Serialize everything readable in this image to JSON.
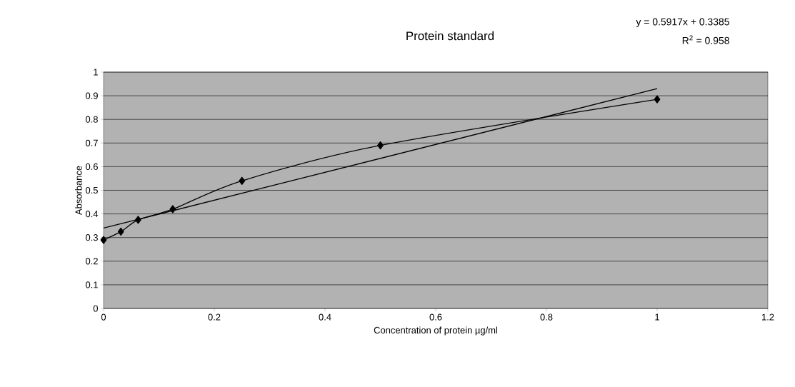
{
  "chart_data": {
    "type": "line",
    "title": "Protein standard",
    "xlabel": "Concentration of protein µg/ml",
    "ylabel": "Absorbance",
    "annotations": [
      "y = 0.5917x + 0.3385",
      "R$^{2}$ = 0.958"
    ],
    "series": [
      {
        "color": "#000000",
        "marker": "diamond",
        "x": [
          0,
          0.03125,
          0.0625,
          0.125,
          0.25,
          0.5,
          1
        ],
        "values": [
          0.29,
          0.325,
          0.375,
          0.42,
          0.54,
          0.69,
          0.885
        ]
      },
      {
        "color": "#000000",
        "marker": "none",
        "x": [
          0,
          1
        ],
        "values": [
          0.34,
          0.93
        ]
      }
    ],
    "xlim": [
      0,
      1.2
    ],
    "xticks": [
      0,
      0.2,
      0.4,
      0.6,
      0.8,
      1,
      1.2
    ],
    "ylim": [
      0,
      1
    ],
    "yticks": [
      0,
      0.1,
      0.2,
      0.3,
      0.4,
      0.5,
      0.6,
      0.7,
      0.8,
      0.9,
      1
    ],
    "grid": "y"
  }
}
